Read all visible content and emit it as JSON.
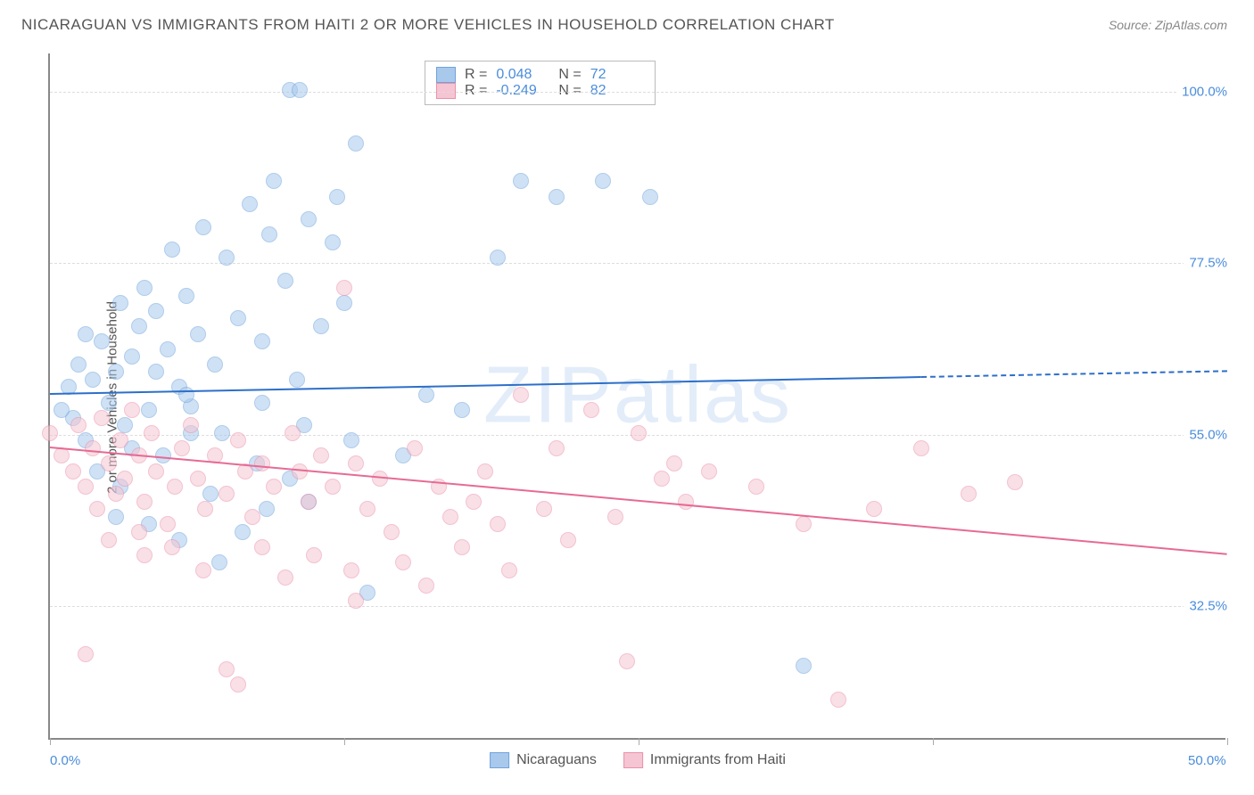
{
  "title": "NICARAGUAN VS IMMIGRANTS FROM HAITI 2 OR MORE VEHICLES IN HOUSEHOLD CORRELATION CHART",
  "source": "Source: ZipAtlas.com",
  "ylabel": "2 or more Vehicles in Household",
  "watermark": "ZIPatlas",
  "chart": {
    "type": "scatter",
    "xlim": [
      0,
      50
    ],
    "ylim": [
      15,
      105
    ],
    "x_major_ticks": [
      0,
      12.5,
      25,
      37.5,
      50
    ],
    "x_tick_labels": {
      "0": "0.0%",
      "50": "50.0%"
    },
    "y_ticks": [
      32.5,
      55.0,
      77.5,
      100.0
    ],
    "y_tick_labels": [
      "32.5%",
      "55.0%",
      "77.5%",
      "100.0%"
    ],
    "background_color": "#ffffff",
    "grid_color": "#dddddd",
    "axis_color": "#888888",
    "tick_label_color": "#4a8ddb",
    "marker_radius": 9,
    "marker_opacity": 0.55,
    "line_width": 2
  },
  "series": [
    {
      "name": "Nicaraguans",
      "fill_color": "#a9c9ec",
      "stroke_color": "#6fa3dd",
      "line_color": "#2d6fc9",
      "stats": {
        "R": "0.048",
        "N": "72"
      },
      "trend": {
        "x0": 0,
        "y0": 60.5,
        "x1": 50,
        "y1": 63.5,
        "dash_after_x": 37
      },
      "points": [
        [
          10.2,
          100
        ],
        [
          10.6,
          100
        ],
        [
          1,
          57
        ],
        [
          1.2,
          64
        ],
        [
          1.5,
          68
        ],
        [
          0.8,
          61
        ],
        [
          0.5,
          58
        ],
        [
          1.8,
          62
        ],
        [
          2.2,
          67
        ],
        [
          2.5,
          59
        ],
        [
          2.8,
          63
        ],
        [
          3,
          72
        ],
        [
          3.2,
          56
        ],
        [
          3.5,
          65
        ],
        [
          3.8,
          69
        ],
        [
          4,
          74
        ],
        [
          4.2,
          58
        ],
        [
          4.5,
          71
        ],
        [
          5,
          66
        ],
        [
          5.2,
          79
        ],
        [
          5.5,
          61
        ],
        [
          5.8,
          73
        ],
        [
          6,
          55
        ],
        [
          6.3,
          68
        ],
        [
          6.5,
          82
        ],
        [
          7,
          64
        ],
        [
          7.5,
          78
        ],
        [
          8,
          70
        ],
        [
          8.5,
          85
        ],
        [
          9,
          67
        ],
        [
          9.3,
          81
        ],
        [
          9.5,
          88
        ],
        [
          10,
          75
        ],
        [
          10.5,
          62
        ],
        [
          11,
          83
        ],
        [
          11.5,
          69
        ],
        [
          12,
          80
        ],
        [
          12.2,
          86
        ],
        [
          12.5,
          72
        ],
        [
          13,
          93
        ],
        [
          13.5,
          34
        ],
        [
          9.2,
          45
        ],
        [
          6,
          58.5
        ],
        [
          7.2,
          38
        ],
        [
          3,
          48
        ],
        [
          4.8,
          52
        ],
        [
          5.5,
          41
        ],
        [
          2.8,
          44
        ],
        [
          8.2,
          42
        ],
        [
          11,
          46
        ],
        [
          1.5,
          54
        ],
        [
          2,
          50
        ],
        [
          3.5,
          53
        ],
        [
          6.8,
          47
        ],
        [
          8.8,
          51
        ],
        [
          10.2,
          49
        ],
        [
          12.8,
          54
        ],
        [
          4.2,
          43
        ],
        [
          15,
          52
        ],
        [
          16,
          60
        ],
        [
          17.5,
          58
        ],
        [
          19,
          78
        ],
        [
          20,
          88
        ],
        [
          21.5,
          86
        ],
        [
          23.5,
          88
        ],
        [
          25.5,
          86
        ],
        [
          32,
          24.5
        ],
        [
          4.5,
          63
        ],
        [
          5.8,
          60
        ],
        [
          7.3,
          55
        ],
        [
          9,
          59
        ],
        [
          10.8,
          56
        ]
      ]
    },
    {
      "name": "Immigrants from Haiti",
      "fill_color": "#f5c5d3",
      "stroke_color": "#eb91aa",
      "line_color": "#e66b94",
      "stats": {
        "R": "-0.249",
        "N": "82"
      },
      "trend": {
        "x0": 0,
        "y0": 53.5,
        "x1": 50,
        "y1": 39.5,
        "dash_after_x": null
      },
      "points": [
        [
          0,
          55
        ],
        [
          0.5,
          52
        ],
        [
          1,
          50
        ],
        [
          1.2,
          56
        ],
        [
          1.5,
          48
        ],
        [
          1.8,
          53
        ],
        [
          2,
          45
        ],
        [
          2.2,
          57
        ],
        [
          2.5,
          51
        ],
        [
          2.8,
          47
        ],
        [
          3,
          54
        ],
        [
          3.2,
          49
        ],
        [
          3.5,
          58
        ],
        [
          3.8,
          52
        ],
        [
          4,
          46
        ],
        [
          4.3,
          55
        ],
        [
          4.5,
          50
        ],
        [
          5,
          43
        ],
        [
          5.3,
          48
        ],
        [
          5.6,
          53
        ],
        [
          6,
          56
        ],
        [
          6.3,
          49
        ],
        [
          6.6,
          45
        ],
        [
          7,
          52
        ],
        [
          7.5,
          47
        ],
        [
          8,
          54
        ],
        [
          8.3,
          50
        ],
        [
          8.6,
          44
        ],
        [
          9,
          51
        ],
        [
          9.5,
          48
        ],
        [
          10,
          36
        ],
        [
          10.3,
          55
        ],
        [
          10.6,
          50
        ],
        [
          11,
          46
        ],
        [
          11.5,
          52
        ],
        [
          12,
          48
        ],
        [
          12.5,
          74
        ],
        [
          13,
          51
        ],
        [
          13.5,
          45
        ],
        [
          14,
          49
        ],
        [
          14.5,
          42
        ],
        [
          15,
          38
        ],
        [
          15.5,
          53
        ],
        [
          16,
          35
        ],
        [
          16.5,
          48
        ],
        [
          17,
          44
        ],
        [
          17.5,
          40
        ],
        [
          18,
          46
        ],
        [
          18.5,
          50
        ],
        [
          19,
          43
        ],
        [
          19.5,
          37
        ],
        [
          20,
          60
        ],
        [
          21,
          45
        ],
        [
          21.5,
          53
        ],
        [
          22,
          41
        ],
        [
          23,
          58
        ],
        [
          24,
          44
        ],
        [
          24.5,
          25
        ],
        [
          25,
          55
        ],
        [
          26,
          49
        ],
        [
          26.5,
          51
        ],
        [
          27,
          46
        ],
        [
          28,
          50
        ],
        [
          30,
          48
        ],
        [
          32,
          43
        ],
        [
          33.5,
          20
        ],
        [
          35,
          45
        ],
        [
          37,
          53
        ],
        [
          39,
          47
        ],
        [
          41,
          48.5
        ],
        [
          1.5,
          26
        ],
        [
          7.5,
          24
        ],
        [
          8,
          22
        ],
        [
          13,
          33
        ],
        [
          2.5,
          41
        ],
        [
          4,
          39
        ],
        [
          6.5,
          37
        ],
        [
          9,
          40
        ],
        [
          11.2,
          39
        ],
        [
          12.8,
          37
        ],
        [
          3.8,
          42
        ],
        [
          5.2,
          40
        ]
      ]
    }
  ],
  "legend_labels": [
    "Nicaraguans",
    "Immigrants from Haiti"
  ]
}
